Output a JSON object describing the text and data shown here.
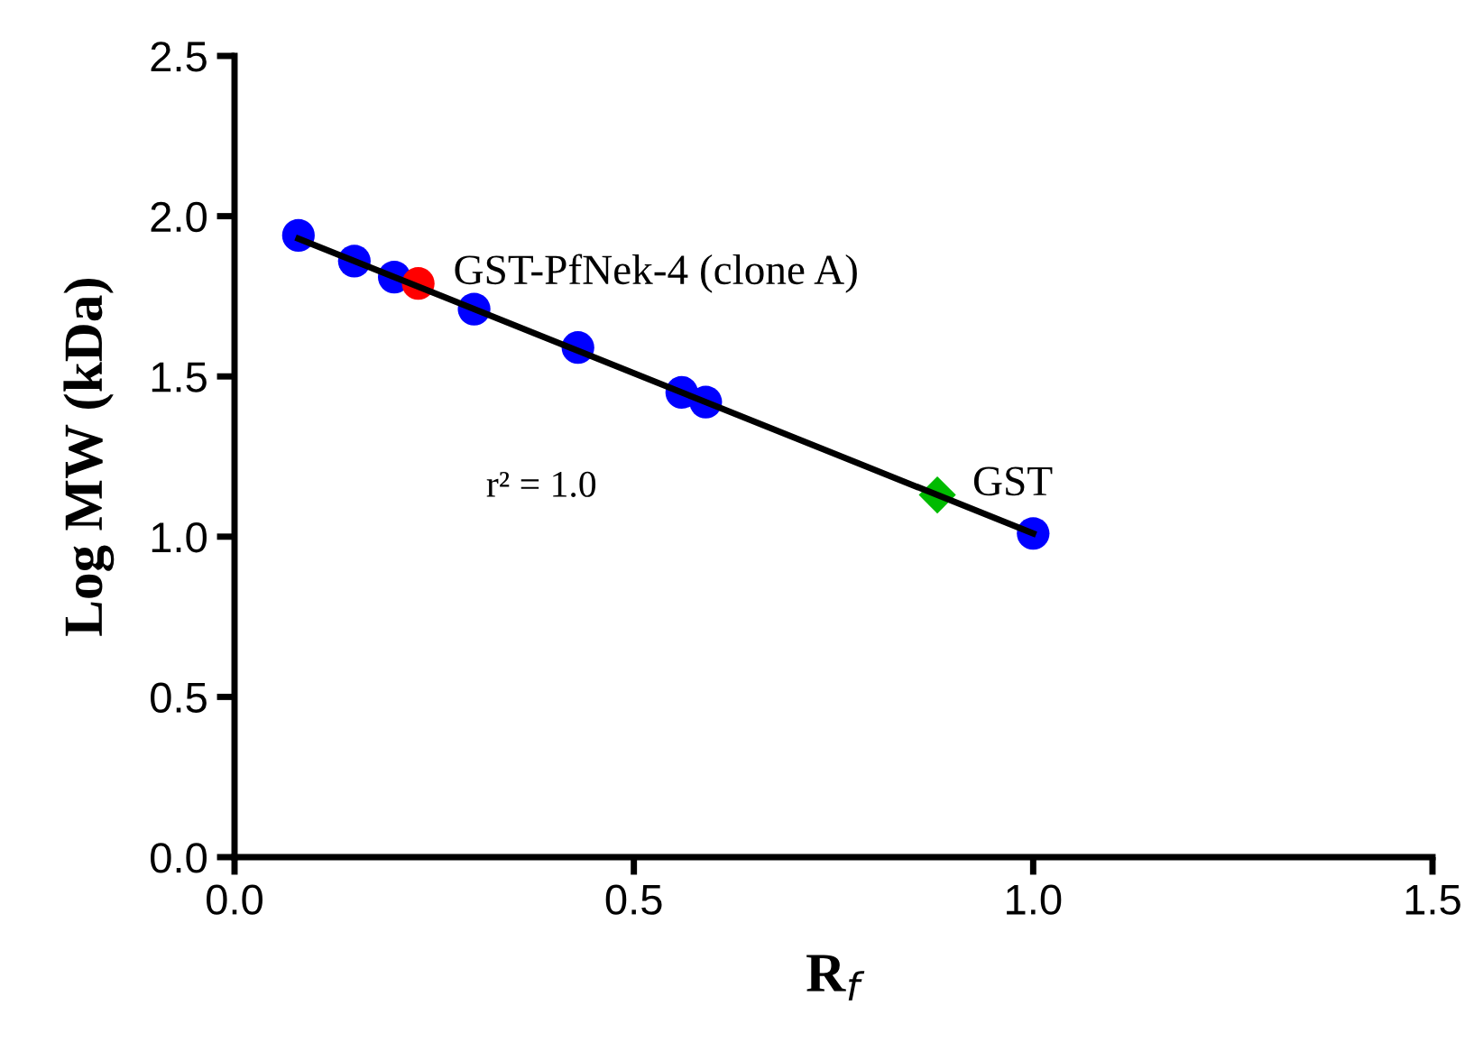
{
  "chart_data": {
    "type": "scatter",
    "xlabel": "R$_{f}$",
    "ylabel": "Log MW (kDa)",
    "xlim": [
      0,
      1.5
    ],
    "xticks": [
      {
        "value": 0,
        "label": "0.0"
      },
      0.5,
      {
        "value": 1,
        "label": "1.0"
      },
      1.5
    ],
    "ylim": [
      0,
      2.5
    ],
    "yticks": [
      {
        "value": 0,
        "label": "0.0"
      },
      0.5,
      {
        "value": 1,
        "label": "1.0"
      },
      1.5,
      {
        "value": 2,
        "label": "2.0"
      },
      2.5
    ],
    "grid": false,
    "legend": false,
    "series": [
      {
        "type": "line",
        "color": "#000000",
        "x": [
          0.08,
          1.0
        ],
        "values": [
          1.93,
          1.01
        ],
        "marker": "none",
        "line_style": "solid"
      },
      {
        "color": "#0000ff",
        "marker": "circle",
        "x": [
          0.08,
          0.15,
          0.2,
          0.3,
          0.43,
          0.56,
          0.59,
          1.0
        ],
        "values": [
          1.94,
          1.86,
          1.81,
          1.71,
          1.59,
          1.45,
          1.42,
          1.01
        ]
      },
      {
        "color": "#ff0000",
        "marker": "circle",
        "x": [
          0.23
        ],
        "values": [
          1.79
        ]
      },
      {
        "color": "#00bb00",
        "marker": "diamond",
        "x": [
          0.88
        ],
        "values": [
          1.13
        ]
      }
    ],
    "annotations": [
      {
        "text": "GST-PfNek-4 (clone A)",
        "x": 0.23,
        "y": 1.79
      },
      {
        "text": "GST",
        "x": 0.88,
        "y": 1.13
      },
      "r² = 1.0"
    ]
  }
}
